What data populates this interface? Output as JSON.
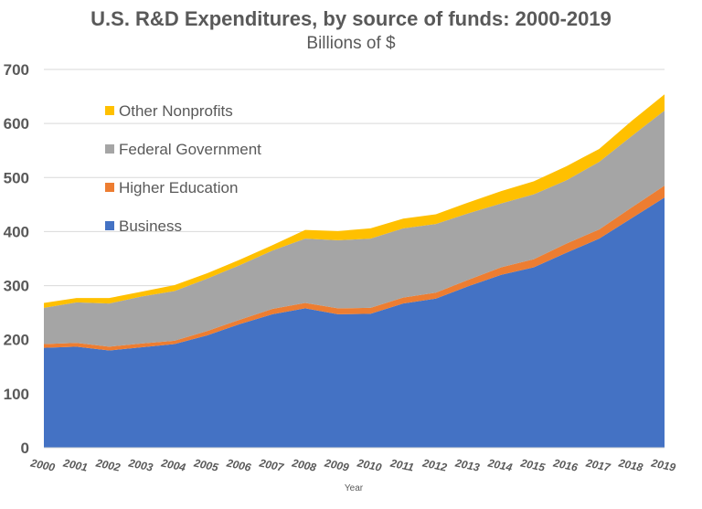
{
  "chart_data": {
    "type": "area",
    "stacked": true,
    "title": "U.S. R&D Expenditures, by source of funds: 2000-2019",
    "subtitle": "Billions of $",
    "xlabel": "Year",
    "ylabel": "",
    "ylim": [
      0,
      700
    ],
    "yticks": [
      0,
      100,
      200,
      300,
      400,
      500,
      600,
      700
    ],
    "grid": true,
    "legend_position": "top-left (inside)",
    "categories": [
      "2000",
      "2001",
      "2002",
      "2003",
      "2004",
      "2005",
      "2006",
      "2007",
      "2008",
      "2009",
      "2010",
      "2011",
      "2012",
      "2013",
      "2014",
      "2015",
      "2016",
      "2017",
      "2018",
      "2019"
    ],
    "series": [
      {
        "name": "Business",
        "color": "#4472C4",
        "values": [
          185,
          187,
          180,
          186,
          192,
          208,
          229,
          247,
          258,
          247,
          248,
          267,
          276,
          299,
          320,
          334,
          361,
          387,
          425,
          463
        ]
      },
      {
        "name": "Higher Education",
        "color": "#ED7D31",
        "values": [
          7,
          7,
          7,
          7,
          6,
          8,
          8,
          10,
          10,
          11,
          11,
          11,
          11,
          12,
          14,
          15,
          17,
          17,
          20,
          22
        ]
      },
      {
        "name": "Federal Government",
        "color": "#A5A5A5",
        "values": [
          67,
          75,
          80,
          87,
          92,
          97,
          101,
          108,
          119,
          126,
          128,
          128,
          127,
          123,
          118,
          120,
          117,
          125,
          132,
          139
        ]
      },
      {
        "name": "Other Nonprofits",
        "color": "#FFC000",
        "values": [
          9,
          8,
          10,
          9,
          11,
          10,
          10,
          10,
          16,
          17,
          19,
          18,
          18,
          20,
          23,
          24,
          26,
          24,
          28,
          30
        ]
      }
    ]
  }
}
